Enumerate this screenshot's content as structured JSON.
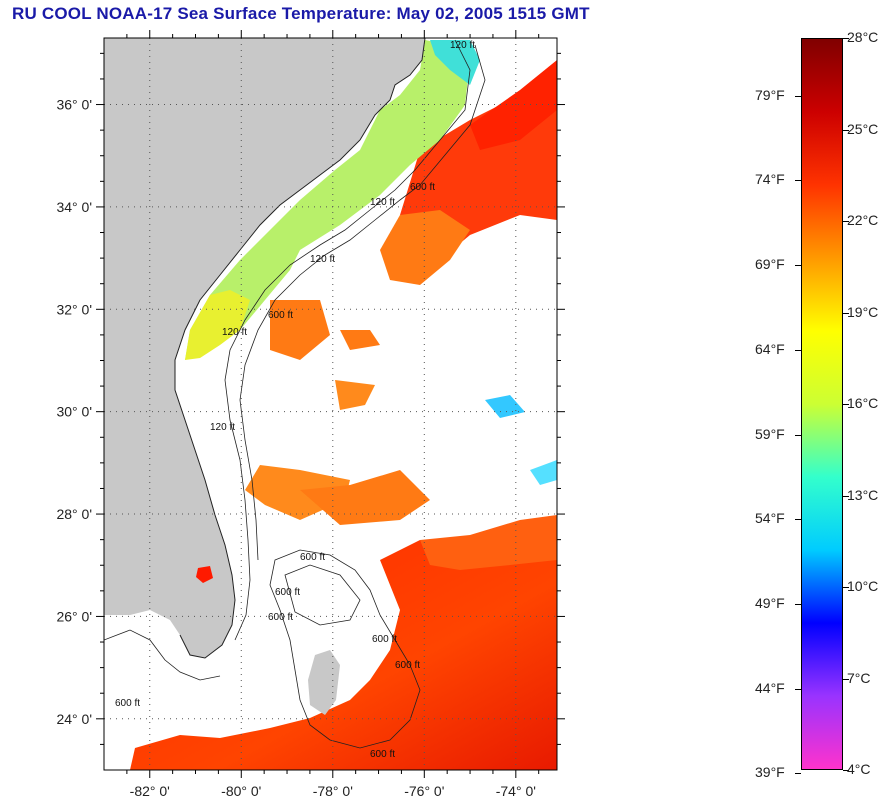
{
  "title": "RU COOL  NOAA-17  Sea Surface Temperature:  May 02, 2005 1515 GMT",
  "map": {
    "lat_labels": [
      "36° 0'",
      "34° 0'",
      "32° 0'",
      "30° 0'",
      "28° 0'",
      "26° 0'",
      "24° 0'"
    ],
    "lon_labels": [
      "-82° 0'",
      "-80° 0'",
      "-78° 0'",
      "-76° 0'",
      "-74° 0'"
    ],
    "lat_values": [
      36,
      34,
      32,
      30,
      28,
      26,
      24
    ],
    "lon_values": [
      -82,
      -80,
      -78,
      -76,
      -74
    ],
    "extent": {
      "lon_min": -83.0,
      "lon_max": -73.1,
      "lat_min": 23.0,
      "lat_max": 37.3
    },
    "contour_labels": [
      "120 ft",
      "600 ft",
      "120 ft",
      "120 ft",
      "600 ft",
      "120 ft",
      "120 ft",
      "600 ft",
      "600 ft",
      "600 ft",
      "600 ft",
      "600 ft",
      "600 ft",
      "600 ft"
    ],
    "colors": {
      "land": "#c8c8c8",
      "cloud": "#ffffff",
      "gridline": "#555555"
    }
  },
  "colorbar": {
    "fahrenheit_labels": [
      "79°F",
      "74°F",
      "69°F",
      "64°F",
      "59°F",
      "54°F",
      "49°F",
      "44°F",
      "39°F"
    ],
    "celsius_labels": [
      "28°C",
      "25°C",
      "22°C",
      "19°C",
      "16°C",
      "13°C",
      "10°C",
      "7°C",
      "4°C"
    ],
    "celsius_values": [
      28,
      25,
      22,
      19,
      16,
      13,
      10,
      7,
      4
    ],
    "range_c": [
      4,
      28
    ],
    "colors": [
      "#ff33cc",
      "#9933ff",
      "#0000ff",
      "#00ccff",
      "#33ffcc",
      "#ccff33",
      "#ffff00",
      "#ff9900",
      "#ff3300",
      "#cc0000",
      "#800000"
    ]
  }
}
